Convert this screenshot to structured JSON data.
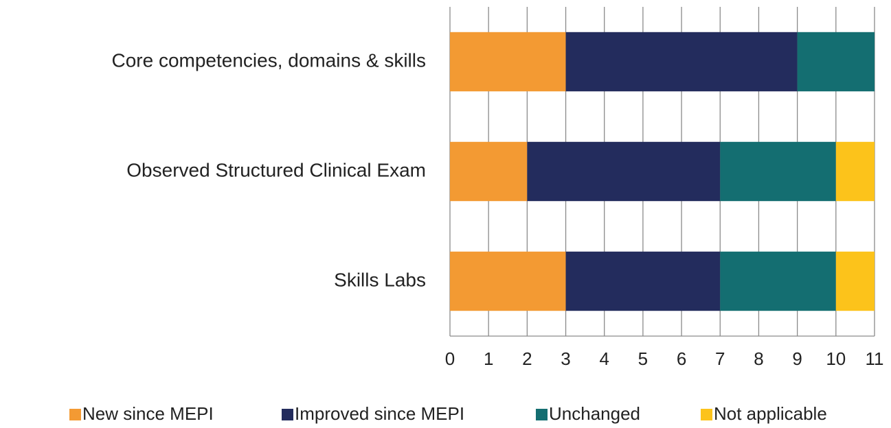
{
  "chart_data": {
    "type": "stacked-barh",
    "categories": [
      "Core competencies, domains & skills",
      "Observed Structured Clinical Exam",
      "Skills Labs"
    ],
    "series": [
      {
        "name": "New since MEPI",
        "color": "#f39a33",
        "values": [
          3,
          2,
          3
        ]
      },
      {
        "name": "Improved since MEPI",
        "color": "#232c5d",
        "values": [
          6,
          5,
          4
        ]
      },
      {
        "name": "Unchanged",
        "color": "#146e71",
        "values": [
          2,
          3,
          3
        ]
      },
      {
        "name": "Not applicable",
        "color": "#fcc31b",
        "values": [
          0,
          1,
          1
        ]
      }
    ],
    "xlim": [
      0,
      11
    ],
    "xticks": [
      0,
      1,
      2,
      3,
      4,
      5,
      6,
      7,
      8,
      9,
      10,
      11
    ],
    "grid": true,
    "legend": "bottom"
  }
}
